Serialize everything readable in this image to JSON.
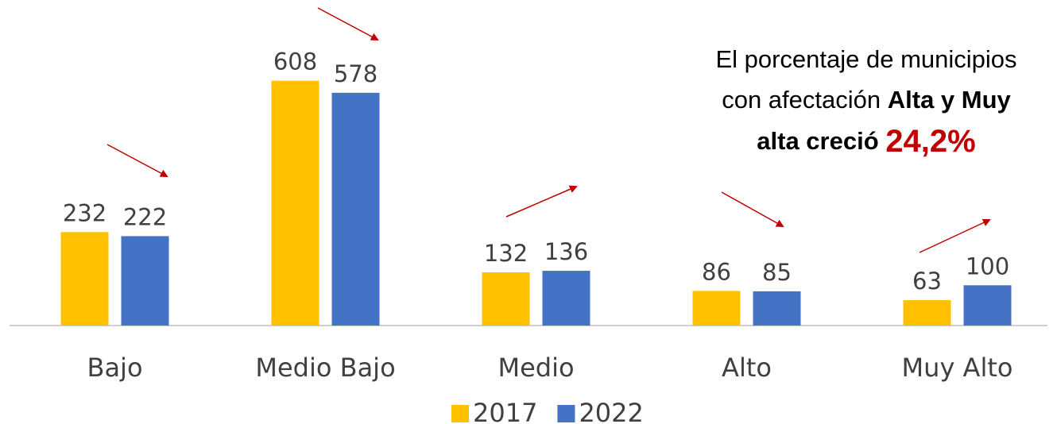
{
  "chart_data": {
    "type": "bar",
    "categories": [
      "Bajo",
      "Medio Bajo",
      "Medio",
      "Alto",
      "Muy Alto"
    ],
    "series": [
      {
        "name": "2017",
        "color": "#FFC000",
        "values": [
          232,
          608,
          132,
          86,
          63
        ]
      },
      {
        "name": "2022",
        "color": "#4472C4",
        "values": [
          222,
          578,
          136,
          85,
          100
        ]
      }
    ],
    "ylim": [
      0,
      700
    ],
    "annotation": [
      "El porcentaje de municipios",
      "con afectación",
      "Alta y Muy",
      "alta creció",
      "24,2%"
    ],
    "legend": "bottom"
  }
}
